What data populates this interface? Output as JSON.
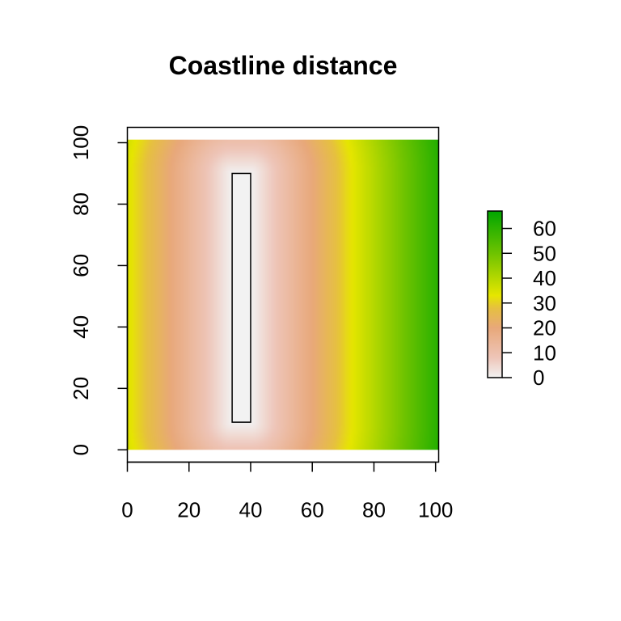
{
  "chart_data": {
    "type": "heatmap",
    "title": "Coastline distance",
    "xlabel": "",
    "ylabel": "",
    "xlim": [
      0,
      101
    ],
    "ylim": [
      -4,
      105
    ],
    "raster_extent": {
      "x": [
        0,
        101
      ],
      "y": [
        0,
        101
      ]
    },
    "xticks": [
      0,
      20,
      40,
      60,
      80,
      100
    ],
    "yticks": [
      0,
      20,
      40,
      60,
      80,
      100
    ],
    "xtick_labels": [
      "0",
      "20",
      "40",
      "60",
      "80",
      "100"
    ],
    "ytick_labels": [
      "0",
      "20",
      "40",
      "60",
      "80",
      "100"
    ],
    "coastline": {
      "type": "rectangle",
      "x": [
        34,
        40
      ],
      "y": [
        9,
        90
      ]
    },
    "value_field": "distance to coastline rectangle",
    "value_range": [
      0,
      67
    ],
    "colorbar": {
      "ticks": [
        0,
        10,
        20,
        30,
        40,
        50,
        60
      ],
      "tick_labels": [
        "0",
        "10",
        "20",
        "30",
        "40",
        "50",
        "60"
      ],
      "placement": "right"
    },
    "color_stops": [
      {
        "value": 0,
        "color": "#f2f2f2"
      },
      {
        "value": 8,
        "color": "#eec5b8"
      },
      {
        "value": 20,
        "color": "#e8a87a"
      },
      {
        "value": 28,
        "color": "#e6c040"
      },
      {
        "value": 33,
        "color": "#e6e600"
      },
      {
        "value": 50,
        "color": "#6ec300"
      },
      {
        "value": 67,
        "color": "#00a600"
      }
    ],
    "grid": false,
    "legend_position": "right"
  }
}
